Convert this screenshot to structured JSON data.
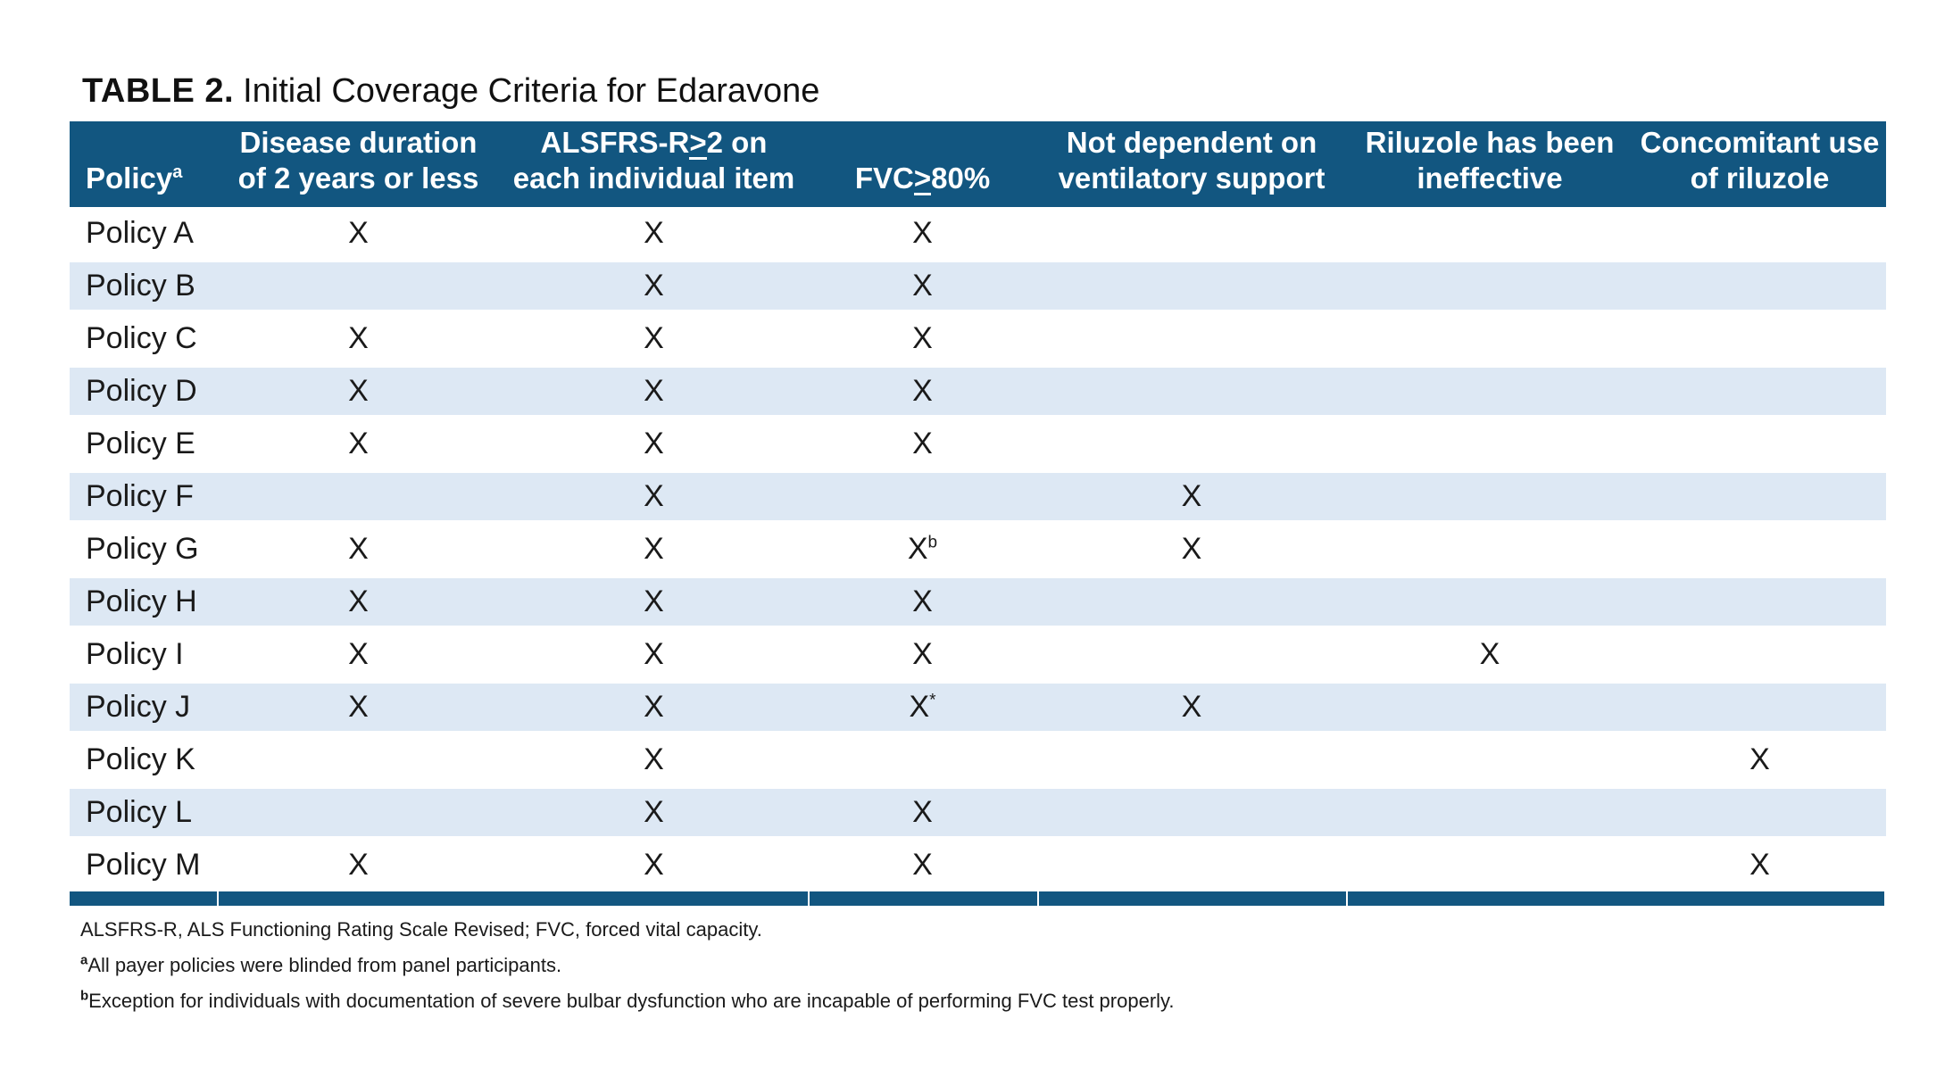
{
  "title": {
    "label": "TABLE 2.",
    "text": "Initial Coverage Criteria for Edaravone"
  },
  "colors": {
    "header_blue": "#125680",
    "stripe_blue": "#dde8f4",
    "text": "#1a1a1a"
  },
  "table": {
    "columns": [
      {
        "id": "policy",
        "lines": [
          "Policy"
        ],
        "sup": "a"
      },
      {
        "id": "disease-duration",
        "lines": [
          "Disease duration",
          "of 2 years or less"
        ]
      },
      {
        "id": "alsfrs",
        "lines": [
          "ALSFRS-R≥2 on",
          "each individual item"
        ]
      },
      {
        "id": "fvc",
        "lines": [
          "FVC≥80%"
        ]
      },
      {
        "id": "ventilatory-support",
        "lines": [
          "Not dependent on",
          "ventilatory support"
        ]
      },
      {
        "id": "riluzole-ineffective",
        "lines": [
          "Riluzole has been",
          "ineffective"
        ]
      },
      {
        "id": "concomitant-riluzole",
        "lines": [
          "Concomitant use",
          "of riluzole"
        ]
      }
    ],
    "rows": [
      {
        "policy": "Policy A",
        "marks": [
          "X",
          "X",
          "X",
          "",
          "",
          ""
        ]
      },
      {
        "policy": "Policy B",
        "marks": [
          "",
          "X",
          "X",
          "",
          "",
          ""
        ]
      },
      {
        "policy": "Policy C",
        "marks": [
          "X",
          "X",
          "X",
          "",
          "",
          ""
        ]
      },
      {
        "policy": "Policy D",
        "marks": [
          "X",
          "X",
          "X",
          "",
          "",
          ""
        ]
      },
      {
        "policy": "Policy E",
        "marks": [
          "X",
          "X",
          "X",
          "",
          "",
          ""
        ]
      },
      {
        "policy": "Policy F",
        "marks": [
          "",
          "X",
          "",
          "X",
          "",
          ""
        ]
      },
      {
        "policy": "Policy G",
        "marks": [
          "X",
          "X",
          "X^b",
          "X",
          "",
          ""
        ]
      },
      {
        "policy": "Policy H",
        "marks": [
          "X",
          "X",
          "X",
          "",
          "",
          ""
        ]
      },
      {
        "policy": "Policy I",
        "marks": [
          "X",
          "X",
          "X",
          "",
          "X",
          ""
        ]
      },
      {
        "policy": "Policy J",
        "marks": [
          "X",
          "X",
          "X^*",
          "X",
          "",
          ""
        ]
      },
      {
        "policy": "Policy K",
        "marks": [
          "",
          "X",
          "",
          "",
          "",
          "X"
        ]
      },
      {
        "policy": "Policy L",
        "marks": [
          "",
          "X",
          "X",
          "",
          "",
          ""
        ]
      },
      {
        "policy": "Policy M",
        "marks": [
          "X",
          "X",
          "X",
          "",
          "",
          "X"
        ]
      }
    ]
  },
  "footnotes": [
    {
      "sup": "",
      "text": "ALSFRS-R, ALS Functioning Rating Scale Revised; FVC, forced vital capacity."
    },
    {
      "sup": "a",
      "text": "All payer policies were blinded from panel participants."
    },
    {
      "sup": "b",
      "text": "Exception for individuals with documentation of severe bulbar dysfunction who are incapable of performing FVC test properly."
    }
  ]
}
